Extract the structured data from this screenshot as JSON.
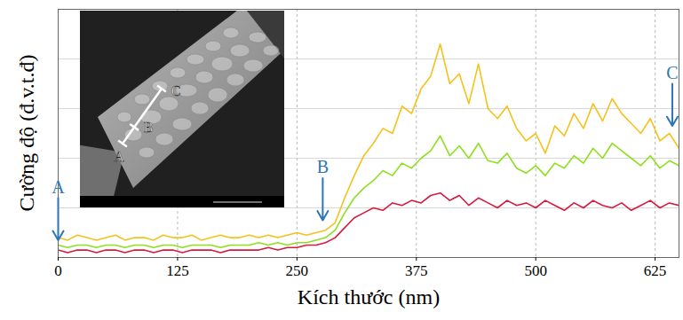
{
  "chart_data": {
    "type": "line",
    "x_label": "Kích thước (nm)",
    "y_label": "Cường độ (đ.v.t.đ)",
    "x": [
      0,
      10,
      20,
      30,
      40,
      50,
      60,
      70,
      80,
      90,
      100,
      110,
      120,
      130,
      140,
      150,
      160,
      170,
      180,
      190,
      200,
      210,
      220,
      230,
      240,
      250,
      260,
      270,
      280,
      290,
      300,
      310,
      320,
      330,
      340,
      350,
      360,
      370,
      380,
      390,
      400,
      410,
      420,
      430,
      440,
      450,
      460,
      470,
      480,
      490,
      500,
      510,
      520,
      530,
      540,
      550,
      560,
      570,
      580,
      590,
      600,
      610,
      620,
      630,
      640,
      650
    ],
    "series": [
      {
        "color": "#f5c21b",
        "values": [
          8,
          7,
          9,
          8,
          7,
          8,
          9,
          7,
          8,
          8,
          7,
          9,
          8,
          8,
          9,
          7,
          8,
          9,
          8,
          8,
          9,
          8,
          9,
          8,
          9,
          10,
          9,
          10,
          11,
          14,
          24,
          33,
          41,
          46,
          52,
          50,
          61,
          58,
          68,
          73,
          86,
          70,
          74,
          62,
          78,
          60,
          56,
          61,
          52,
          47,
          50,
          42,
          53,
          49,
          58,
          52,
          62,
          55,
          64,
          58,
          54,
          50,
          56,
          47,
          50,
          44
        ]
      },
      {
        "color": "#8ee01f",
        "values": [
          5,
          4,
          5,
          5,
          4,
          5,
          5,
          4,
          5,
          5,
          4,
          5,
          5,
          4,
          5,
          5,
          5,
          4,
          5,
          5,
          5,
          6,
          5,
          6,
          5,
          6,
          6,
          7,
          8,
          11,
          18,
          24,
          28,
          31,
          35,
          33,
          38,
          36,
          40,
          43,
          49,
          41,
          45,
          40,
          46,
          39,
          38,
          42,
          36,
          34,
          37,
          33,
          38,
          36,
          41,
          38,
          44,
          40,
          46,
          43,
          40,
          37,
          41,
          36,
          39,
          37
        ]
      },
      {
        "color": "#d61a40",
        "values": [
          3,
          2,
          3,
          3,
          2,
          3,
          3,
          2,
          3,
          3,
          2,
          3,
          3,
          2,
          3,
          3,
          3,
          2,
          3,
          3,
          3,
          3,
          4,
          3,
          4,
          4,
          5,
          5,
          6,
          8,
          12,
          16,
          18,
          20,
          19,
          22,
          21,
          23,
          22,
          25,
          26,
          23,
          25,
          21,
          24,
          22,
          20,
          23,
          21,
          22,
          20,
          23,
          21,
          19,
          22,
          20,
          23,
          21,
          20,
          22,
          19,
          21,
          23,
          20,
          22,
          21
        ]
      }
    ],
    "xlim": [
      0,
      650
    ],
    "ylim": [
      0,
      100
    ],
    "xticks": [
      0,
      125,
      250,
      375,
      500,
      625
    ],
    "yticks": [
      0,
      20,
      40,
      60,
      80,
      100
    ],
    "grid": true,
    "tick_labels": "x",
    "annotations": [
      {
        "x": 0,
        "y": 7,
        "label": "A"
      },
      {
        "x": 277,
        "y": 15,
        "label": "B"
      },
      {
        "x": 643,
        "y": 53,
        "label": "C"
      }
    ],
    "inset_labels": [
      "A",
      "B",
      "C"
    ]
  }
}
